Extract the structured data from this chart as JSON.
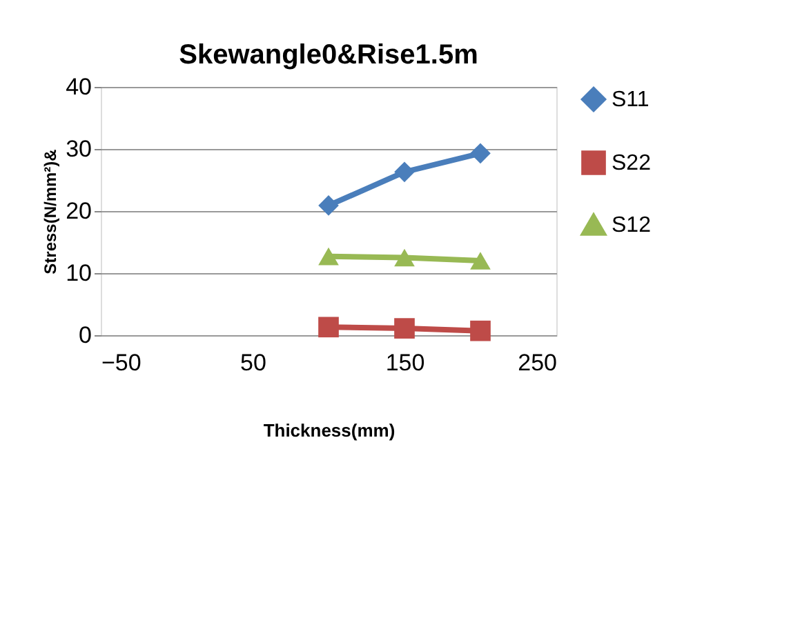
{
  "chart_data": {
    "type": "line",
    "title": "Skewangle0&Rise1.5m",
    "xlabel": "Thickness(mm)",
    "ylabel": "Stress(N/mm²)&",
    "x": [
      100,
      150,
      200
    ],
    "series": [
      {
        "name": "S11",
        "color": "#4a7ebb",
        "marker": "diamond",
        "values": [
          20.9,
          26.3,
          29.3
        ]
      },
      {
        "name": "S22",
        "color": "#be4b48",
        "marker": "square",
        "values": [
          1.3,
          1.1,
          0.7
        ]
      },
      {
        "name": "S12",
        "color": "#98b954",
        "marker": "triangle",
        "values": [
          12.7,
          12.5,
          12.0
        ]
      }
    ],
    "xlim": [
      -50,
      250
    ],
    "xticks": [
      -50,
      50,
      150,
      250
    ],
    "ylim": [
      0,
      40
    ],
    "yticks": [
      0,
      10,
      20,
      30,
      40
    ],
    "grid": "y",
    "legend": "right"
  }
}
